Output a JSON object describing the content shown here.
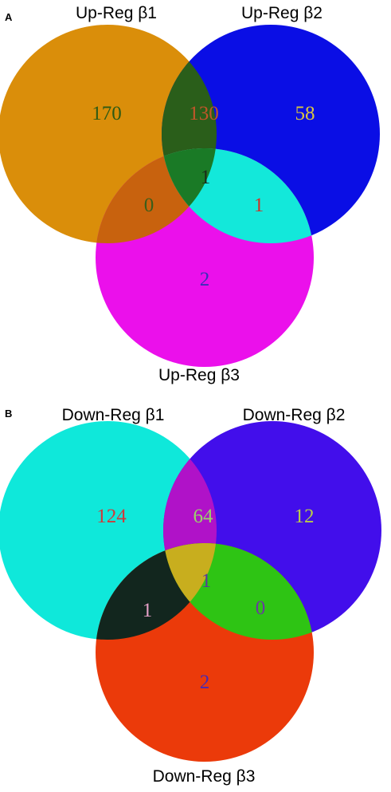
{
  "panels": [
    {
      "letter": "A",
      "sets": {
        "s1": {
          "label": "Up-Reg β1",
          "color": "#DA8E0A"
        },
        "s2": {
          "label": "Up-Reg β2",
          "color": "#0A0EE5"
        },
        "s3": {
          "label": "Up-Reg β3",
          "color": "#EB10EB"
        }
      },
      "regions": {
        "only1": {
          "value": "170",
          "color": "#0E7A8A",
          "text_color": "#2E5A14"
        },
        "only2": {
          "value": "58",
          "color": "#0A0EE5",
          "text_color": "#D9C640"
        },
        "only3": {
          "value": "2",
          "color": "#EB10EB",
          "text_color": "#3A2EB8"
        },
        "r12": {
          "value": "130",
          "color": "#2A5E1A",
          "text_color": "#C0562A"
        },
        "r13": {
          "value": "0",
          "color": "#C8620E",
          "text_color": "#3A5E1A"
        },
        "r23": {
          "value": "1",
          "color": "#13E8DA",
          "text_color": "#D03028"
        },
        "r123": {
          "value": "1",
          "color": "#1A7A26",
          "text_color": "#1A2A1A"
        }
      }
    },
    {
      "letter": "B",
      "sets": {
        "s1": {
          "label": "Down-Reg β1",
          "color": "#0FE8DA"
        },
        "s2": {
          "label": "Down-Reg β2",
          "color": "#420EEB"
        },
        "s3": {
          "label": "Down-Reg β3",
          "color": "#EB3A0A"
        }
      },
      "regions": {
        "only1": {
          "value": "124",
          "color": "#0FE8DA",
          "text_color": "#D03A3A"
        },
        "only2": {
          "value": "12",
          "color": "#420EEB",
          "text_color": "#B8CC4A"
        },
        "only3": {
          "value": "2",
          "color": "#EB3A0A",
          "text_color": "#4A2AB0"
        },
        "r12": {
          "value": "64",
          "color": "#B012C8",
          "text_color": "#9AD46A"
        },
        "r13": {
          "value": "1",
          "color": "#12261E",
          "text_color": "#E6A0C8"
        },
        "r23": {
          "value": "0",
          "color": "#2EC414",
          "text_color": "#6A3AA0"
        },
        "r123": {
          "value": "1",
          "color": "#C8AE1E",
          "text_color": "#5A3A9A"
        }
      }
    }
  ]
}
